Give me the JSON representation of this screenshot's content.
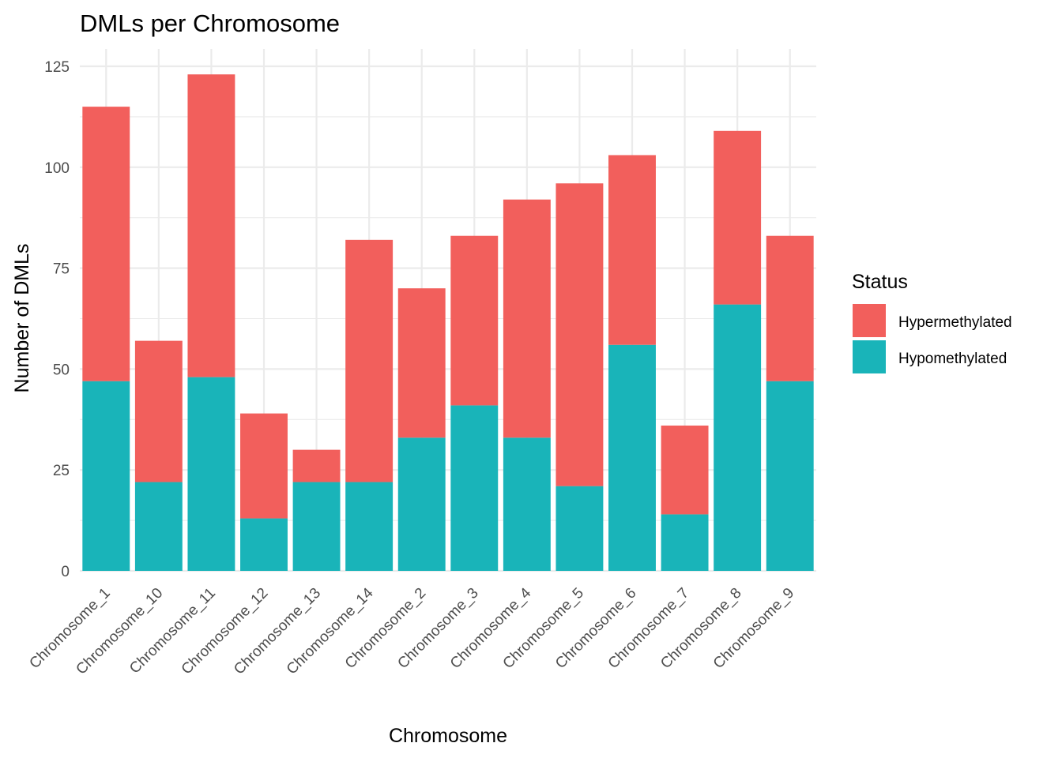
{
  "chart_data": {
    "type": "bar",
    "stacked": true,
    "title": "DMLs per Chromosome",
    "xlabel": "Chromosome",
    "ylabel": "Number of DMLs",
    "ylim": [
      0,
      125
    ],
    "yticks": [
      0,
      25,
      50,
      75,
      100,
      125
    ],
    "grid": true,
    "legend": {
      "title": "Status",
      "position": "right"
    },
    "categories": [
      "Chromosome_1",
      "Chromosome_10",
      "Chromosome_11",
      "Chromosome_12",
      "Chromosome_13",
      "Chromosome_14",
      "Chromosome_2",
      "Chromosome_3",
      "Chromosome_4",
      "Chromosome_5",
      "Chromosome_6",
      "Chromosome_7",
      "Chromosome_8",
      "Chromosome_9"
    ],
    "series": [
      {
        "name": "Hypermethylated",
        "color": "#F25F5C",
        "values": [
          68,
          35,
          75,
          26,
          8,
          60,
          37,
          42,
          59,
          75,
          47,
          22,
          43,
          36
        ]
      },
      {
        "name": "Hypomethylated",
        "color": "#19B4B9",
        "values": [
          47,
          22,
          48,
          13,
          22,
          22,
          33,
          41,
          33,
          21,
          56,
          14,
          66,
          47
        ]
      }
    ],
    "stack_order_bottom_to_top": [
      "Hypomethylated",
      "Hypermethylated"
    ]
  }
}
